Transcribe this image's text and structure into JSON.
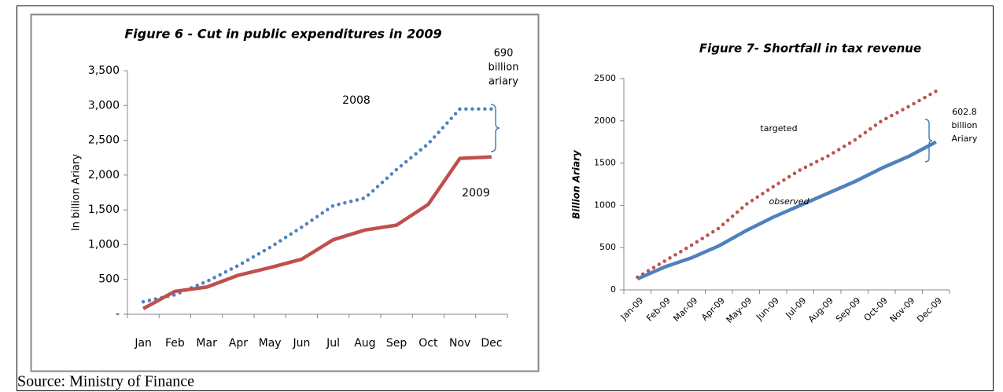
{
  "source": "Source: Ministry of Finance",
  "chart_data": [
    {
      "type": "line",
      "title": "Figure 6 -  Cut in public expenditures in  2009",
      "ylabel": "In billion Ariary",
      "categories": [
        "Jan",
        "Feb",
        "Mar",
        "Apr",
        "May",
        "Jun",
        "Jul",
        "Aug",
        "Sep",
        "Oct",
        "Nov",
        "Dec"
      ],
      "ylim": [
        0,
        3500
      ],
      "yticks": [
        {
          "value": 0,
          "label": "-"
        },
        500,
        {
          "value": 1000,
          "label": "1,000"
        },
        {
          "value": 1500,
          "label": "1,500"
        },
        {
          "value": 2000,
          "label": "2,000"
        },
        {
          "value": 2500,
          "label": "2,500"
        },
        {
          "value": 3000,
          "label": "3,000"
        },
        {
          "value": 3500,
          "label": "3,500"
        }
      ],
      "series": [
        {
          "name": "2008",
          "color": "#4f81bd",
          "style": "dotted",
          "values": [
            180,
            280,
            470,
            700,
            960,
            1250,
            1560,
            1670,
            2080,
            2450,
            2950,
            2950
          ]
        },
        {
          "name": "2009",
          "color": "#c0504d",
          "style": "solid",
          "values": [
            80,
            330,
            390,
            560,
            670,
            790,
            1070,
            1210,
            1280,
            1580,
            2240,
            2260
          ]
        }
      ],
      "annotation": [
        "690",
        "billion",
        "ariary"
      ]
    },
    {
      "type": "line",
      "title": "Figure 7-  Shortfall in tax revenue",
      "ylabel": "Billion Ariary",
      "categories": [
        "Jan-09",
        "Feb-09",
        "Mar-09",
        "Apr-09",
        "May-09",
        "Jun-09",
        "Jul-09",
        "Aug-09",
        "Sep-09",
        "Oct-09",
        "Nov-09",
        "Dec-09"
      ],
      "ylim": [
        0,
        2500
      ],
      "yticks": [
        0,
        500,
        1000,
        1500,
        2000,
        2500
      ],
      "series": [
        {
          "name": "targeted",
          "color": "#c0504d",
          "style": "dotted",
          "values": [
            150,
            340,
            530,
            730,
            1010,
            1220,
            1420,
            1580,
            1770,
            2000,
            2170,
            2350
          ]
        },
        {
          "name": "observed",
          "color": "#4f81bd",
          "style": "solid",
          "values": [
            130,
            270,
            380,
            520,
            700,
            860,
            1000,
            1140,
            1280,
            1440,
            1580,
            1750
          ]
        }
      ],
      "annotation": [
        "602.8",
        "billion",
        "Ariary"
      ]
    }
  ]
}
